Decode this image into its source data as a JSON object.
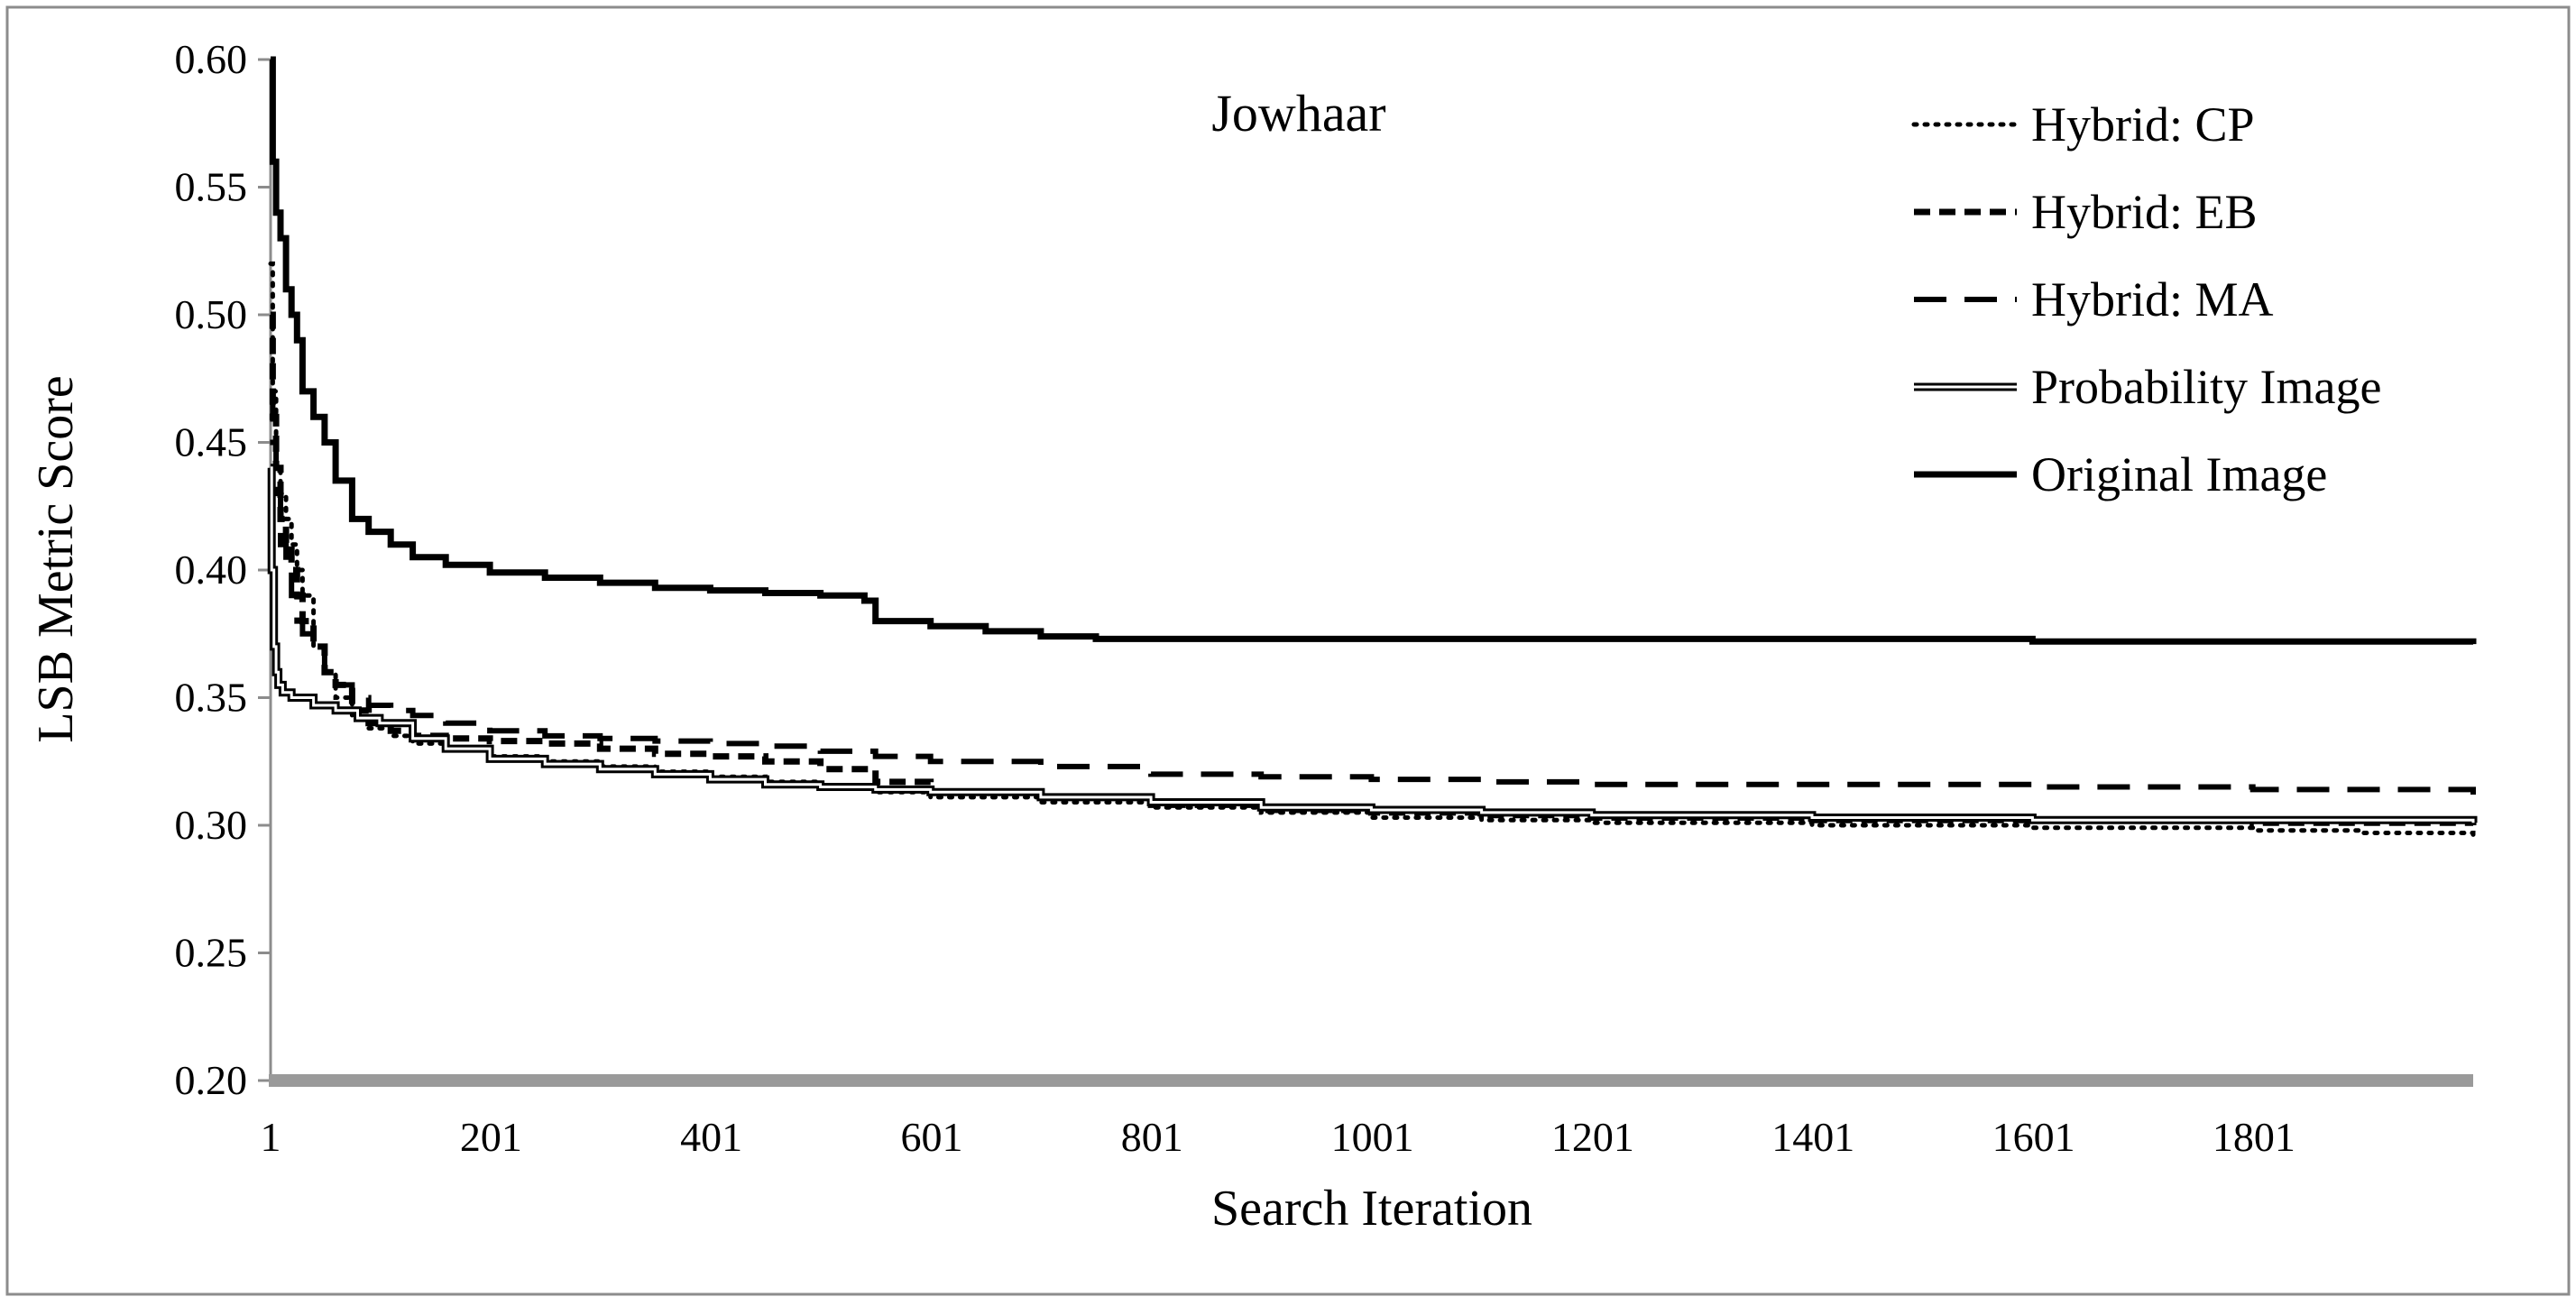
{
  "chart_data": {
    "type": "line",
    "title": "Jowhaar",
    "xlabel": "Search Iteration",
    "ylabel": "LSB Metric Score",
    "xlim": [
      1,
      2000
    ],
    "ylim": [
      0.2,
      0.6
    ],
    "x_ticks": [
      1,
      201,
      401,
      601,
      801,
      1001,
      1201,
      1401,
      1601,
      1801
    ],
    "x_tick_labels": [
      "1",
      "201",
      "401",
      "601",
      "801",
      "1001",
      "1201",
      "1401",
      "1601",
      "1801"
    ],
    "y_ticks": [
      0.2,
      0.25,
      0.3,
      0.35,
      0.4,
      0.45,
      0.5,
      0.55,
      0.6
    ],
    "y_tick_labels": [
      "0.20",
      "0.25",
      "0.30",
      "0.35",
      "0.40",
      "0.45",
      "0.50",
      "0.55",
      "0.60"
    ],
    "grid": false,
    "legend_position": "top-right",
    "series": [
      {
        "name": "Hybrid: CP",
        "style": "dotted",
        "color": "#000000",
        "x": [
          1,
          3,
          6,
          10,
          15,
          20,
          25,
          30,
          40,
          50,
          60,
          75,
          90,
          110,
          130,
          160,
          200,
          250,
          300,
          350,
          400,
          450,
          500,
          550,
          600,
          700,
          800,
          900,
          1000,
          1100,
          1200,
          1400,
          1600,
          1800,
          1900,
          2000
        ],
        "y": [
          0.52,
          0.47,
          0.44,
          0.43,
          0.42,
          0.41,
          0.4,
          0.39,
          0.37,
          0.36,
          0.35,
          0.342,
          0.338,
          0.335,
          0.332,
          0.33,
          0.327,
          0.325,
          0.323,
          0.321,
          0.319,
          0.317,
          0.315,
          0.313,
          0.311,
          0.309,
          0.307,
          0.305,
          0.303,
          0.302,
          0.301,
          0.3,
          0.299,
          0.298,
          0.297,
          0.296
        ]
      },
      {
        "name": "Hybrid: EB",
        "style": "short-dash",
        "color": "#000000",
        "x": [
          1,
          3,
          6,
          10,
          15,
          20,
          25,
          30,
          40,
          50,
          60,
          75,
          90,
          110,
          130,
          160,
          200,
          250,
          300,
          350,
          400,
          450,
          500,
          550,
          600,
          700,
          800,
          900,
          1000,
          1100,
          1200,
          1400,
          1600,
          1800,
          2000
        ],
        "y": [
          0.5,
          0.46,
          0.44,
          0.42,
          0.41,
          0.4,
          0.39,
          0.38,
          0.37,
          0.36,
          0.355,
          0.345,
          0.34,
          0.337,
          0.335,
          0.334,
          0.333,
          0.332,
          0.33,
          0.328,
          0.327,
          0.325,
          0.322,
          0.317,
          0.313,
          0.311,
          0.308,
          0.306,
          0.305,
          0.304,
          0.303,
          0.302,
          0.302,
          0.301,
          0.3
        ]
      },
      {
        "name": "Hybrid: MA",
        "style": "long-dash",
        "color": "#000000",
        "x": [
          1,
          3,
          6,
          10,
          15,
          20,
          25,
          30,
          40,
          50,
          60,
          75,
          90,
          110,
          130,
          160,
          200,
          250,
          300,
          350,
          400,
          450,
          500,
          550,
          600,
          700,
          800,
          900,
          1000,
          1100,
          1200,
          1400,
          1600,
          1800,
          2000
        ],
        "y": [
          0.47,
          0.45,
          0.43,
          0.41,
          0.4,
          0.39,
          0.38,
          0.375,
          0.37,
          0.36,
          0.355,
          0.35,
          0.347,
          0.345,
          0.343,
          0.34,
          0.337,
          0.335,
          0.334,
          0.333,
          0.332,
          0.331,
          0.329,
          0.327,
          0.325,
          0.323,
          0.32,
          0.319,
          0.318,
          0.317,
          0.316,
          0.316,
          0.315,
          0.314,
          0.312
        ]
      },
      {
        "name": "Probability Image",
        "style": "double",
        "color": "#000000",
        "x": [
          1,
          2,
          4,
          6,
          8,
          12,
          20,
          40,
          60,
          80,
          100,
          130,
          160,
          200,
          250,
          300,
          350,
          400,
          450,
          500,
          550,
          600,
          700,
          800,
          900,
          1000,
          1100,
          1200,
          1400,
          1600,
          1800,
          2000
        ],
        "y": [
          0.44,
          0.4,
          0.37,
          0.36,
          0.355,
          0.352,
          0.35,
          0.347,
          0.345,
          0.342,
          0.34,
          0.334,
          0.33,
          0.326,
          0.324,
          0.322,
          0.32,
          0.318,
          0.316,
          0.315,
          0.314,
          0.313,
          0.311,
          0.309,
          0.307,
          0.306,
          0.305,
          0.304,
          0.303,
          0.302,
          0.302,
          0.301
        ]
      },
      {
        "name": "Original Image",
        "style": "thick",
        "color": "#000000",
        "x": [
          1,
          3,
          6,
          10,
          15,
          20,
          25,
          30,
          40,
          50,
          60,
          75,
          90,
          110,
          130,
          160,
          200,
          250,
          300,
          350,
          400,
          450,
          500,
          540,
          550,
          600,
          650,
          700,
          750,
          800,
          1000,
          1200,
          1400,
          1600,
          1800,
          2000
        ],
        "y": [
          0.6,
          0.56,
          0.54,
          0.53,
          0.51,
          0.5,
          0.49,
          0.47,
          0.46,
          0.45,
          0.435,
          0.42,
          0.415,
          0.41,
          0.405,
          0.402,
          0.399,
          0.397,
          0.395,
          0.393,
          0.392,
          0.391,
          0.39,
          0.388,
          0.38,
          0.378,
          0.376,
          0.374,
          0.373,
          0.373,
          0.373,
          0.373,
          0.373,
          0.372,
          0.372,
          0.371
        ]
      }
    ]
  }
}
